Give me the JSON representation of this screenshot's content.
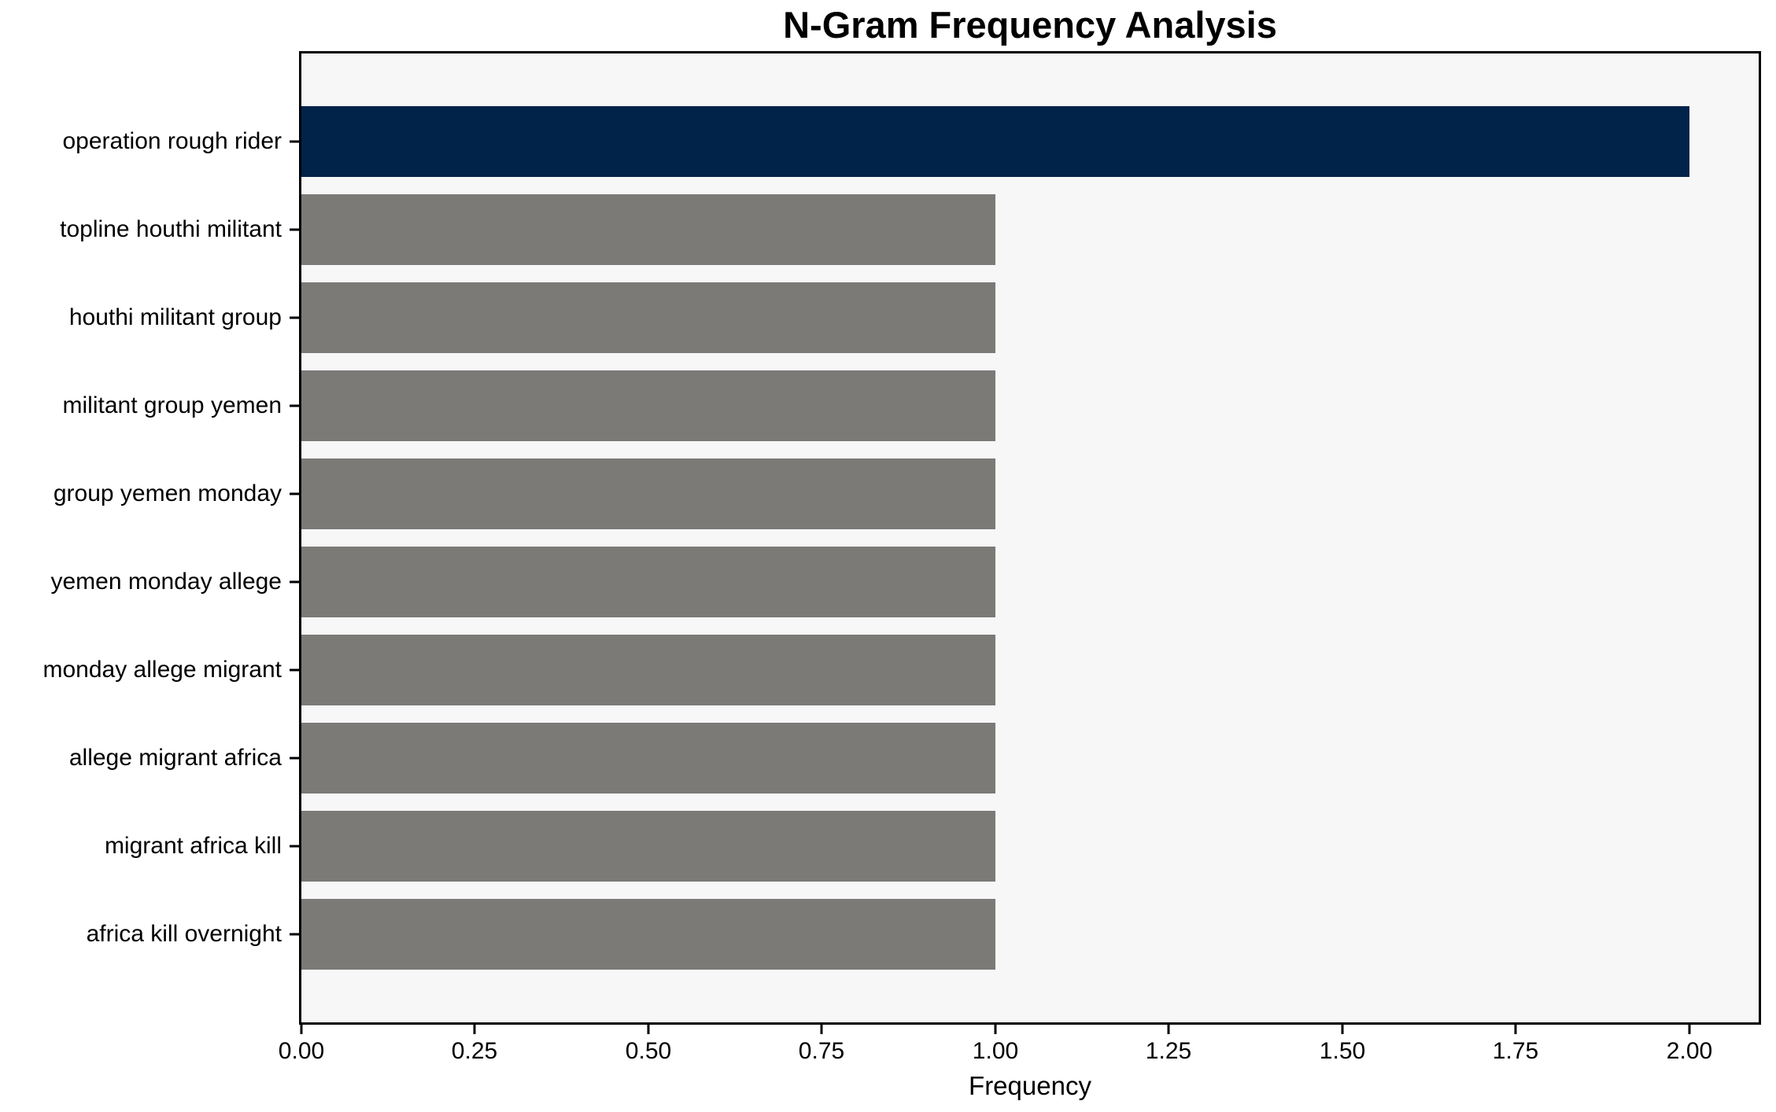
{
  "figure": {
    "background": "#ffffff",
    "plot_background": "#f7f7f7",
    "spine_color": "#000000"
  },
  "chart_data": {
    "type": "bar",
    "orientation": "horizontal",
    "title": "N-Gram Frequency Analysis",
    "xlabel": "Frequency",
    "ylabel": "",
    "categories": [
      "operation rough rider",
      "topline houthi militant",
      "houthi militant group",
      "militant group yemen",
      "group yemen monday",
      "yemen monday allege",
      "monday allege migrant",
      "allege migrant africa",
      "migrant africa kill",
      "africa kill overnight"
    ],
    "values": [
      2,
      1,
      1,
      1,
      1,
      1,
      1,
      1,
      1,
      1
    ],
    "bar_colors": [
      "#012349",
      "#7b7a77",
      "#7b7a77",
      "#7b7a77",
      "#7b7a77",
      "#7b7a77",
      "#7b7a77",
      "#7b7a77",
      "#7b7a77",
      "#7b7a77"
    ],
    "highlight_color": "#012349",
    "default_color": "#7b7a77",
    "xlim": [
      0,
      2.1
    ],
    "x_ticks": [
      0,
      0.25,
      0.5,
      0.75,
      1.0,
      1.25,
      1.5,
      1.75,
      2.0
    ],
    "x_tick_labels": [
      "0.00",
      "0.25",
      "0.50",
      "0.75",
      "1.00",
      "1.25",
      "1.50",
      "1.75",
      "2.00"
    ],
    "grid": false,
    "legend_position": "none"
  }
}
